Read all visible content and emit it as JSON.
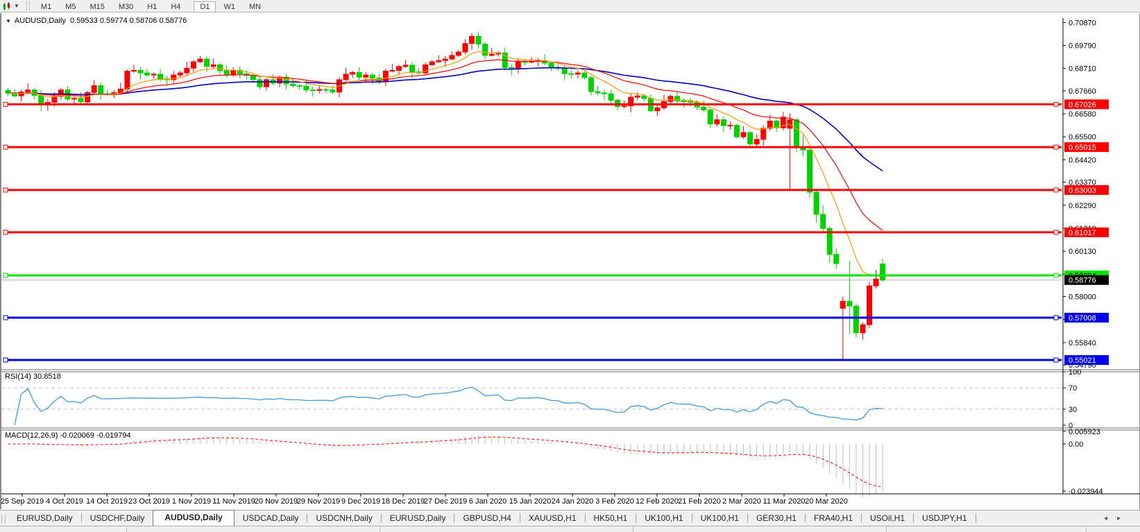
{
  "toolbar": {
    "timeframes": [
      "M1",
      "M5",
      "M15",
      "M30",
      "H1",
      "H4",
      "D1",
      "W1",
      "MN"
    ],
    "active": "D1"
  },
  "chart": {
    "title": {
      "symbol": "AUDUSD,Daily",
      "ohlc": "0.59533 0.59774 0.58706 0.58776"
    },
    "price_axis_ticks": [
      "0.70870",
      "0.69790",
      "0.68710",
      "0.67660",
      "0.66580",
      "0.65500",
      "0.64420",
      "0.63370",
      "0.62290",
      "0.61210",
      "0.60130",
      "0.59050",
      "0.58000",
      "0.56920",
      "0.55840",
      "0.54790"
    ],
    "bid": {
      "value": 0.58776,
      "label": "0.58776",
      "badge_bg": "#000000",
      "badge_text": "#ffffff",
      "line_color": "#b4b4b4"
    },
    "hlines": [
      {
        "price": 0.67026,
        "label": "0.67026",
        "color": "#fe0000",
        "text": "#ffffff"
      },
      {
        "price": 0.65015,
        "label": "0.65015",
        "color": "#fe0000",
        "text": "#ffffff"
      },
      {
        "price": 0.63003,
        "label": "0.63003",
        "color": "#fe0000",
        "text": "#ffffff"
      },
      {
        "price": 0.61017,
        "label": "0.61017",
        "color": "#fe0000",
        "text": "#ffffff"
      },
      {
        "price": 0.58994,
        "label": "0.58994",
        "color": "#00e400",
        "text": "#000000"
      },
      {
        "price": 0.57008,
        "label": "0.57008",
        "color": "#0000ee",
        "text": "#ffffff"
      },
      {
        "price": 0.55021,
        "label": "0.55021",
        "color": "#0000ee",
        "text": "#ffffff"
      }
    ],
    "date_labels": [
      "25 Sep 2019",
      "4 Oct 2019",
      "14 Oct 2019",
      "23 Oct 2019",
      "1 Nov 2019",
      "11 Nov 2019",
      "20 Nov 2019",
      "29 Nov 2019",
      "9 Dec 2019",
      "18 Dec 2019",
      "27 Dec 2019",
      "6 Jan 2020",
      "15 Jan 2020",
      "24 Jan 2020",
      "3 Feb 2020",
      "12 Feb 2020",
      "21 Feb 2020",
      "2 Mar 2020",
      "11 Mar 2020",
      "20 Mar 2020"
    ],
    "colors": {
      "bull": "#fe0000",
      "bear": "#00d200",
      "ma_fast": "#ff9c00",
      "ma_mid": "#fe0000",
      "ma_slow": "#0000cc"
    },
    "ma_periods": {
      "fast": 9,
      "mid": 21,
      "slow": 50
    },
    "candles": [
      [
        0.6768,
        0.6778,
        0.674,
        0.6755
      ],
      [
        0.6755,
        0.6775,
        0.6734,
        0.6742
      ],
      [
        0.6742,
        0.6772,
        0.6717,
        0.676
      ],
      [
        0.676,
        0.68,
        0.675,
        0.677
      ],
      [
        0.677,
        0.6778,
        0.6726,
        0.6744
      ],
      [
        0.6744,
        0.6769,
        0.667,
        0.6701
      ],
      [
        0.6701,
        0.6727,
        0.6671,
        0.6712
      ],
      [
        0.6712,
        0.6758,
        0.6692,
        0.674
      ],
      [
        0.674,
        0.678,
        0.6725,
        0.677
      ],
      [
        0.677,
        0.679,
        0.6719,
        0.6727
      ],
      [
        0.6727,
        0.6742,
        0.6705,
        0.673
      ],
      [
        0.673,
        0.676,
        0.6704,
        0.6714
      ],
      [
        0.6714,
        0.6766,
        0.6696,
        0.6758
      ],
      [
        0.6758,
        0.6815,
        0.6746,
        0.679
      ],
      [
        0.679,
        0.6805,
        0.6722,
        0.6752
      ],
      [
        0.6752,
        0.677,
        0.674,
        0.6748
      ],
      [
        0.6748,
        0.6769,
        0.6732,
        0.6757
      ],
      [
        0.6757,
        0.6804,
        0.6747,
        0.6774
      ],
      [
        0.6774,
        0.6866,
        0.6756,
        0.6858
      ],
      [
        0.6858,
        0.6887,
        0.685,
        0.6862
      ],
      [
        0.6862,
        0.6877,
        0.682,
        0.685
      ],
      [
        0.685,
        0.6868,
        0.683,
        0.684
      ],
      [
        0.684,
        0.6852,
        0.6822,
        0.6844
      ],
      [
        0.6844,
        0.6869,
        0.681,
        0.6822
      ],
      [
        0.6822,
        0.6837,
        0.6788,
        0.6818
      ],
      [
        0.6818,
        0.6858,
        0.6798,
        0.684
      ],
      [
        0.684,
        0.686,
        0.6825,
        0.685
      ],
      [
        0.685,
        0.6902,
        0.684,
        0.6872
      ],
      [
        0.6872,
        0.691,
        0.6854,
        0.6902
      ],
      [
        0.6902,
        0.693,
        0.6895,
        0.6915
      ],
      [
        0.6915,
        0.6927,
        0.6855,
        0.688
      ],
      [
        0.688,
        0.6918,
        0.687,
        0.6888
      ],
      [
        0.6888,
        0.6896,
        0.6842,
        0.686
      ],
      [
        0.686,
        0.6885,
        0.6828,
        0.684
      ],
      [
        0.684,
        0.6877,
        0.6832,
        0.6862
      ],
      [
        0.6862,
        0.688,
        0.6825,
        0.6845
      ],
      [
        0.6845,
        0.6863,
        0.6818,
        0.6838
      ],
      [
        0.6838,
        0.6848,
        0.6803,
        0.6818
      ],
      [
        0.6818,
        0.6838,
        0.6773,
        0.6785
      ],
      [
        0.6785,
        0.6826,
        0.6767,
        0.6818
      ],
      [
        0.6818,
        0.6843,
        0.6792,
        0.6802
      ],
      [
        0.6802,
        0.6838,
        0.6784,
        0.683
      ],
      [
        0.683,
        0.6845,
        0.6773,
        0.6798
      ],
      [
        0.6798,
        0.6828,
        0.678,
        0.679
      ],
      [
        0.679,
        0.6798,
        0.677,
        0.6788
      ],
      [
        0.6788,
        0.6813,
        0.6758,
        0.677
      ],
      [
        0.677,
        0.6785,
        0.6738,
        0.6768
      ],
      [
        0.6768,
        0.679,
        0.6752,
        0.6772
      ],
      [
        0.6772,
        0.6782,
        0.6755,
        0.677
      ],
      [
        0.677,
        0.679,
        0.6752,
        0.676
      ],
      [
        0.676,
        0.683,
        0.6735,
        0.6818
      ],
      [
        0.6818,
        0.6874,
        0.681,
        0.6844
      ],
      [
        0.6844,
        0.686,
        0.6826,
        0.6852
      ],
      [
        0.6852,
        0.6877,
        0.6818,
        0.683
      ],
      [
        0.683,
        0.6855,
        0.681,
        0.684
      ],
      [
        0.684,
        0.6851,
        0.6796,
        0.6826
      ],
      [
        0.6826,
        0.6844,
        0.6796,
        0.6808
      ],
      [
        0.6808,
        0.687,
        0.6788,
        0.6858
      ],
      [
        0.6858,
        0.6892,
        0.6852,
        0.6862
      ],
      [
        0.6862,
        0.6888,
        0.6844,
        0.688
      ],
      [
        0.688,
        0.6911,
        0.6874,
        0.6886
      ],
      [
        0.6886,
        0.6901,
        0.6825,
        0.6855
      ],
      [
        0.6855,
        0.6873,
        0.684,
        0.685
      ],
      [
        0.685,
        0.69,
        0.6838,
        0.6888
      ],
      [
        0.6888,
        0.691,
        0.6884,
        0.6902
      ],
      [
        0.6902,
        0.6933,
        0.6896,
        0.6908
      ],
      [
        0.6908,
        0.693,
        0.6878,
        0.6915
      ],
      [
        0.6915,
        0.695,
        0.6912,
        0.6932
      ],
      [
        0.6932,
        0.6958,
        0.6924,
        0.6948
      ],
      [
        0.6948,
        0.7008,
        0.6938,
        0.6988
      ],
      [
        0.6988,
        0.7037,
        0.6958,
        0.7022
      ],
      [
        0.7022,
        0.704,
        0.6965,
        0.6985
      ],
      [
        0.6985,
        0.6995,
        0.6912,
        0.6932
      ],
      [
        0.6932,
        0.6968,
        0.6928,
        0.6938
      ],
      [
        0.6938,
        0.6952,
        0.6926,
        0.6944
      ],
      [
        0.6944,
        0.6969,
        0.6863,
        0.6875
      ],
      [
        0.6875,
        0.689,
        0.6838,
        0.6868
      ],
      [
        0.6868,
        0.692,
        0.6848,
        0.6902
      ],
      [
        0.6902,
        0.6912,
        0.6885,
        0.69
      ],
      [
        0.69,
        0.6924,
        0.6896,
        0.6904
      ],
      [
        0.6904,
        0.692,
        0.6883,
        0.6908
      ],
      [
        0.6908,
        0.6938,
        0.6886,
        0.6896
      ],
      [
        0.6896,
        0.6904,
        0.6858,
        0.6876
      ],
      [
        0.6876,
        0.6901,
        0.686,
        0.6872
      ],
      [
        0.6872,
        0.6887,
        0.6816,
        0.6846
      ],
      [
        0.6846,
        0.6864,
        0.6824,
        0.6844
      ],
      [
        0.6844,
        0.6862,
        0.6825,
        0.685
      ],
      [
        0.685,
        0.6865,
        0.6818,
        0.6828
      ],
      [
        0.6828,
        0.6836,
        0.6744,
        0.6762
      ],
      [
        0.6762,
        0.6787,
        0.6744,
        0.6756
      ],
      [
        0.6756,
        0.6771,
        0.6722,
        0.6752
      ],
      [
        0.6752,
        0.677,
        0.6702,
        0.6722
      ],
      [
        0.6722,
        0.673,
        0.6674,
        0.6692
      ],
      [
        0.6692,
        0.672,
        0.6683,
        0.6695
      ],
      [
        0.6695,
        0.6751,
        0.6665,
        0.6736
      ],
      [
        0.6736,
        0.676,
        0.6722,
        0.6742
      ],
      [
        0.6742,
        0.6752,
        0.6715,
        0.673
      ],
      [
        0.673,
        0.675,
        0.6664,
        0.6672
      ],
      [
        0.6672,
        0.6698,
        0.6647,
        0.6686
      ],
      [
        0.6686,
        0.6746,
        0.6676,
        0.6716
      ],
      [
        0.6716,
        0.6748,
        0.6698,
        0.674
      ],
      [
        0.674,
        0.6765,
        0.6706,
        0.6718
      ],
      [
        0.6718,
        0.6733,
        0.6686,
        0.6716
      ],
      [
        0.6716,
        0.6734,
        0.6692,
        0.6712
      ],
      [
        0.6712,
        0.6722,
        0.6675,
        0.669
      ],
      [
        0.669,
        0.672,
        0.6666,
        0.6676
      ],
      [
        0.6676,
        0.6684,
        0.6592,
        0.661
      ],
      [
        0.661,
        0.6655,
        0.6598,
        0.663
      ],
      [
        0.663,
        0.6645,
        0.6572,
        0.6602
      ],
      [
        0.6602,
        0.6622,
        0.6584,
        0.6604
      ],
      [
        0.6604,
        0.6612,
        0.6542,
        0.655
      ],
      [
        0.655,
        0.66,
        0.654,
        0.657
      ],
      [
        0.657,
        0.6578,
        0.6498,
        0.6516
      ],
      [
        0.6516,
        0.6563,
        0.6504,
        0.6538
      ],
      [
        0.6538,
        0.6605,
        0.6508,
        0.659
      ],
      [
        0.659,
        0.6654,
        0.658,
        0.6624
      ],
      [
        0.6624,
        0.6632,
        0.6574,
        0.6592
      ],
      [
        0.6592,
        0.6667,
        0.658,
        0.6642
      ],
      [
        0.659,
        0.666,
        0.6305,
        0.663
      ],
      [
        0.663,
        0.6639,
        0.6478,
        0.65
      ],
      [
        0.65,
        0.656,
        0.646,
        0.6488
      ],
      [
        0.6488,
        0.6496,
        0.6265,
        0.629
      ],
      [
        0.629,
        0.6302,
        0.6148,
        0.6186
      ],
      [
        0.6186,
        0.623,
        0.6096,
        0.612
      ],
      [
        0.612,
        0.6128,
        0.5958,
        0.5998
      ],
      [
        0.5998,
        0.6028,
        0.593,
        0.5955
      ],
      [
        0.5745,
        0.58,
        0.5506,
        0.5778
      ],
      [
        0.5778,
        0.5968,
        0.5625,
        0.5755
      ],
      [
        0.5755,
        0.5768,
        0.5608,
        0.563
      ],
      [
        0.563,
        0.568,
        0.5598,
        0.5668
      ],
      [
        0.5668,
        0.5868,
        0.5652,
        0.585
      ],
      [
        0.585,
        0.5925,
        0.5838,
        0.5882
      ],
      [
        0.59533,
        0.59774,
        0.58706,
        0.58776
      ]
    ]
  },
  "rsi": {
    "label": "RSI(14) 30.8518",
    "period": 14,
    "value": 30.8518,
    "axis_labels": [
      "100",
      "70",
      "30",
      "0"
    ],
    "upper_level": 70,
    "lower_level": 30,
    "line_color": "#4d9fe0",
    "level_color": "#c0c0c0"
  },
  "macd": {
    "label": "MACD(12,26,9) -0.020069 -0.019794",
    "fast": 12,
    "slow": 26,
    "signal": 9,
    "main_value": -0.020069,
    "signal_value": -0.019794,
    "axis_max": "0.005923",
    "axis_zero": "0.00",
    "axis_min": "-0.023944",
    "histogram_color": "#bdbdbd",
    "signal_color": "#fe0000"
  },
  "tabs": {
    "items": [
      "EURUSD,Daily",
      "USDCHF,Daily",
      "AUDUSD,Daily",
      "USDCAD,Daily",
      "USDCNH,Daily",
      "EURUSD,Daily",
      "GBPUSD,H4",
      "XAUUSD,H1",
      "HK50,H1",
      "UK100,H1",
      "UK100,H1",
      "GER30,H1",
      "FRA40,H1",
      "USOil,H1",
      "USDJPY,H1"
    ],
    "active_index": 2,
    "scroll_left_icon": "◂",
    "scroll_right_icon": "▸"
  }
}
